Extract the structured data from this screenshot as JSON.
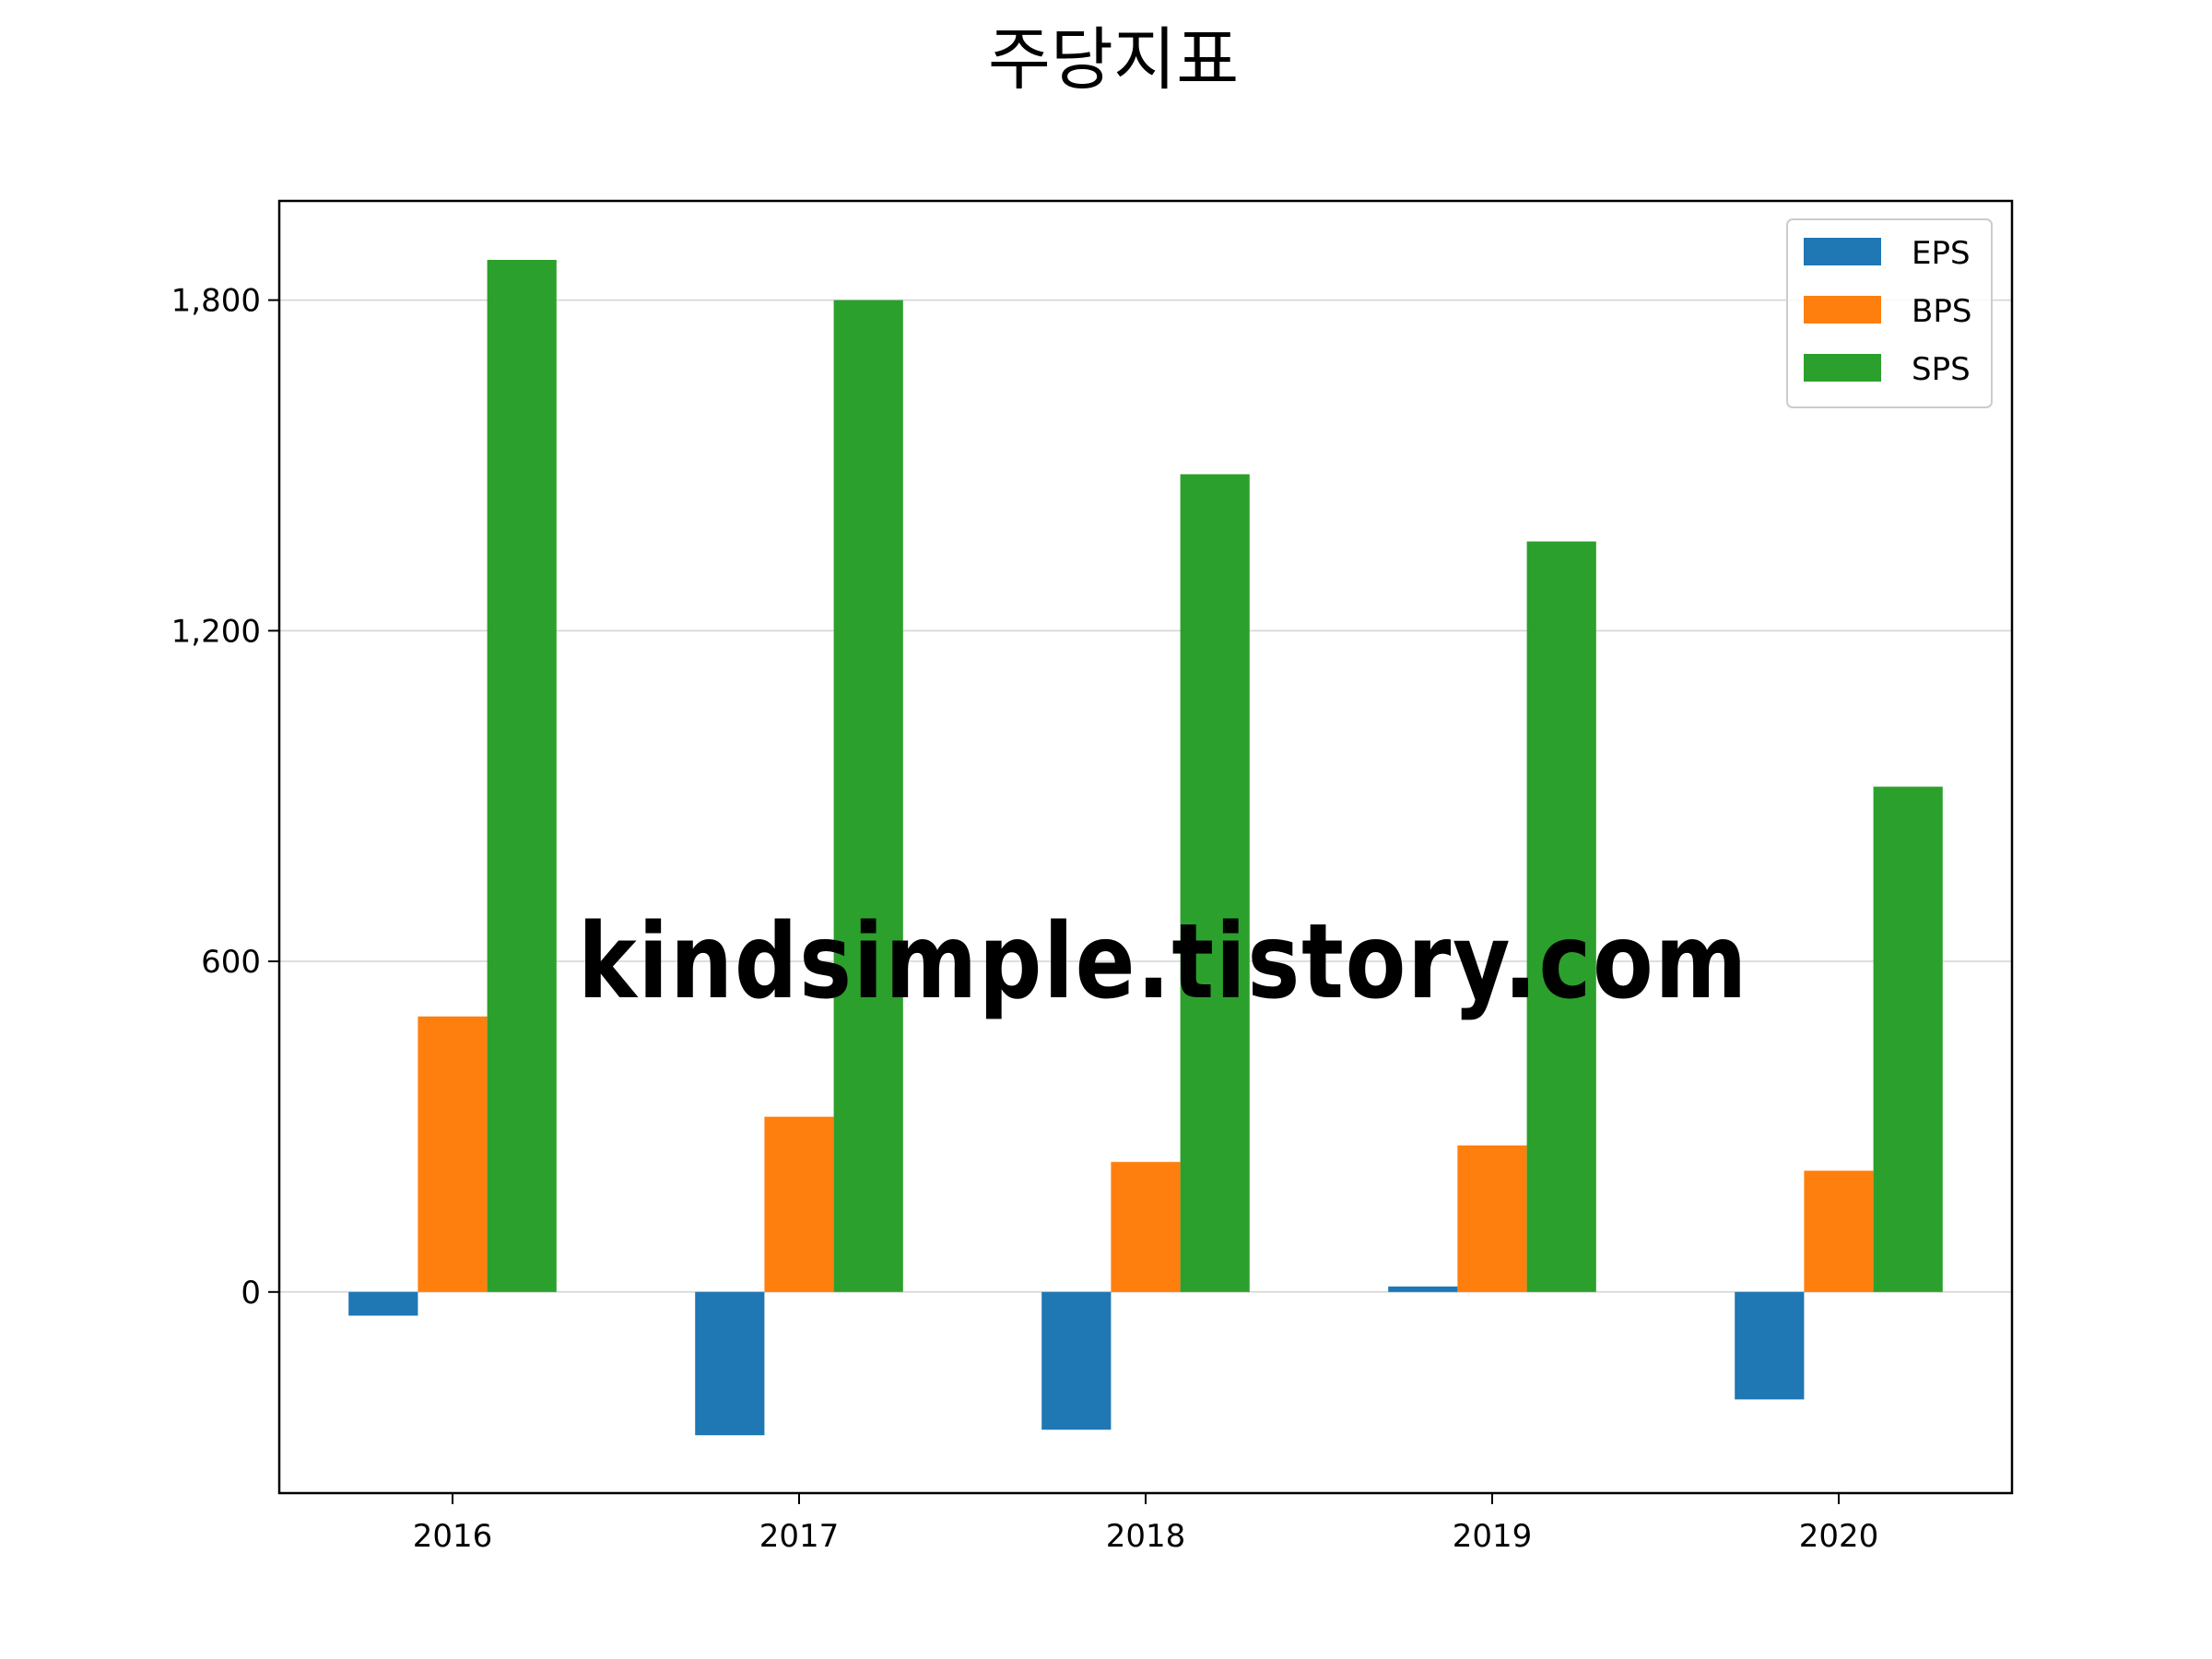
{
  "chart_data": {
    "type": "bar",
    "title": "주당지표",
    "xlabel": "",
    "ylabel": "",
    "categories": [
      "2016",
      "2017",
      "2018",
      "2019",
      "2020"
    ],
    "series": [
      {
        "name": "EPS",
        "color": "#1f77b4",
        "values": [
          -43,
          -260,
          -250,
          10,
          -195
        ]
      },
      {
        "name": "BPS",
        "color": "#ff7f0e",
        "values": [
          500,
          318,
          236,
          266,
          220
        ]
      },
      {
        "name": "SPS",
        "color": "#2ca02c",
        "values": [
          1873,
          1800,
          1484,
          1362,
          917
        ]
      }
    ],
    "ylim": [
      -365,
      1980
    ],
    "yticks": [
      0,
      600,
      1200,
      1800
    ],
    "ytick_labels": [
      "0",
      "600",
      "1,200",
      "1,800"
    ],
    "grid": "horizontal",
    "legend_position": "top-right",
    "watermark": {
      "text": "kindsimple.tistory.com",
      "color": "#e8a0e8"
    }
  }
}
